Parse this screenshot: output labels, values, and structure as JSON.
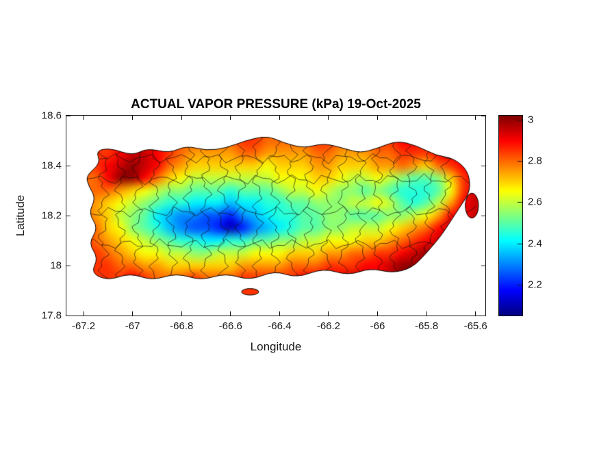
{
  "chart_data": {
    "type": "heatmap",
    "title": "ACTUAL VAPOR PRESSURE (kPa) 19-Oct-2025",
    "xlabel": "Longitude",
    "ylabel": "Latitude",
    "xlim": [
      -67.27,
      -65.56
    ],
    "ylim": [
      17.8,
      18.6
    ],
    "x_ticks": [
      {
        "value": -67.2,
        "label": "-67.2"
      },
      {
        "value": -67.0,
        "label": "-67"
      },
      {
        "value": -66.8,
        "label": "-66.8"
      },
      {
        "value": -66.6,
        "label": "-66.6"
      },
      {
        "value": -66.4,
        "label": "-66.4"
      },
      {
        "value": -66.2,
        "label": "-66.2"
      },
      {
        "value": -66.0,
        "label": "-66"
      },
      {
        "value": -65.8,
        "label": "-65.8"
      },
      {
        "value": -65.6,
        "label": "-65.6"
      }
    ],
    "y_ticks": [
      {
        "value": 17.8,
        "label": "17.8"
      },
      {
        "value": 18.0,
        "label": "18"
      },
      {
        "value": 18.2,
        "label": "18.2"
      },
      {
        "value": 18.4,
        "label": "18.4"
      },
      {
        "value": 18.6,
        "label": "18.6"
      }
    ],
    "colormap": "jet",
    "color_axis": [
      2.05,
      3.02
    ],
    "colorbar_ticks": [
      {
        "value": 2.2,
        "label": "2.2"
      },
      {
        "value": 2.4,
        "label": "2.4"
      },
      {
        "value": 2.6,
        "label": "2.6"
      },
      {
        "value": 2.8,
        "label": "2.8"
      },
      {
        "value": 3.0,
        "label": "3"
      }
    ],
    "units": "kPa",
    "grid": {
      "lon_start": -67.2,
      "lon_step": 0.05,
      "lat_start": 18.5,
      "lat_step": -0.05,
      "ncols": 33,
      "nrows": 12,
      "values": [
        [
          null,
          null,
          null,
          null,
          null,
          2.85,
          2.9,
          2.85,
          2.8,
          2.8,
          2.8,
          2.8,
          2.8,
          2.85,
          2.85,
          2.8,
          2.8,
          2.8,
          2.8,
          2.85,
          2.85,
          2.8,
          2.8,
          2.8,
          2.85,
          2.85,
          2.9,
          2.9,
          2.85,
          2.85,
          null,
          null,
          null
        ],
        [
          null,
          null,
          2.85,
          2.9,
          2.95,
          2.95,
          2.9,
          2.85,
          2.8,
          2.75,
          2.75,
          2.75,
          2.75,
          2.8,
          2.8,
          2.75,
          2.75,
          2.75,
          2.75,
          2.8,
          2.8,
          2.75,
          2.75,
          2.75,
          2.8,
          2.8,
          2.85,
          2.85,
          2.85,
          2.9,
          2.9,
          null,
          null
        ],
        [
          null,
          2.85,
          2.9,
          2.95,
          3.0,
          2.95,
          2.9,
          2.8,
          2.75,
          2.7,
          2.7,
          2.7,
          2.7,
          2.7,
          2.7,
          2.65,
          2.7,
          2.7,
          2.7,
          2.75,
          2.75,
          2.7,
          2.7,
          2.7,
          2.75,
          2.75,
          2.8,
          2.75,
          2.7,
          2.8,
          2.85,
          2.9,
          null
        ],
        [
          null,
          2.8,
          2.9,
          3.0,
          3.0,
          2.9,
          2.8,
          2.7,
          2.65,
          2.6,
          2.6,
          2.6,
          2.6,
          2.6,
          2.6,
          2.6,
          2.65,
          2.65,
          2.65,
          2.7,
          2.7,
          2.65,
          2.6,
          2.6,
          2.65,
          2.6,
          2.55,
          2.5,
          2.5,
          2.55,
          2.7,
          2.85,
          2.9
        ],
        [
          null,
          2.8,
          2.8,
          2.75,
          2.7,
          2.65,
          2.6,
          2.55,
          2.55,
          2.5,
          2.5,
          2.5,
          2.45,
          2.5,
          2.5,
          2.5,
          2.55,
          2.6,
          2.6,
          2.65,
          2.6,
          2.55,
          2.55,
          2.5,
          2.55,
          2.5,
          2.45,
          2.45,
          2.45,
          2.5,
          2.65,
          2.85,
          2.95
        ],
        [
          2.8,
          2.75,
          2.7,
          2.65,
          2.6,
          2.55,
          2.5,
          2.45,
          2.45,
          2.4,
          2.4,
          2.4,
          2.35,
          2.4,
          2.4,
          2.45,
          2.45,
          2.5,
          2.5,
          2.55,
          2.55,
          2.55,
          2.6,
          2.6,
          2.65,
          2.6,
          2.5,
          2.45,
          2.5,
          2.6,
          2.75,
          2.9,
          2.95
        ],
        [
          2.8,
          2.75,
          2.7,
          2.6,
          2.55,
          2.5,
          2.4,
          2.35,
          2.3,
          2.3,
          2.25,
          2.25,
          2.2,
          2.3,
          2.35,
          2.4,
          2.45,
          2.45,
          2.5,
          2.5,
          2.55,
          2.55,
          2.5,
          2.5,
          2.5,
          2.55,
          2.55,
          2.6,
          2.65,
          2.75,
          2.9,
          null,
          null
        ],
        [
          2.85,
          2.8,
          2.7,
          2.65,
          2.55,
          2.5,
          2.45,
          2.35,
          2.3,
          2.25,
          2.25,
          2.2,
          2.1,
          2.2,
          2.3,
          2.35,
          2.4,
          2.45,
          2.5,
          2.5,
          2.55,
          2.55,
          2.6,
          2.6,
          2.6,
          2.65,
          2.7,
          2.75,
          2.8,
          2.9,
          2.95,
          null,
          null
        ],
        [
          2.85,
          2.8,
          2.75,
          2.7,
          2.65,
          2.6,
          2.55,
          2.5,
          2.45,
          2.45,
          2.4,
          2.4,
          2.45,
          2.45,
          2.5,
          2.5,
          2.55,
          2.55,
          2.6,
          2.6,
          2.65,
          2.65,
          2.65,
          2.7,
          2.7,
          2.75,
          2.8,
          2.85,
          2.9,
          2.95,
          null,
          null,
          null
        ],
        [
          null,
          2.85,
          2.8,
          2.75,
          2.7,
          2.65,
          2.65,
          2.6,
          2.6,
          2.55,
          2.55,
          2.6,
          2.6,
          2.6,
          2.65,
          2.65,
          2.65,
          2.7,
          2.7,
          2.7,
          2.75,
          2.75,
          2.8,
          2.8,
          2.85,
          2.85,
          2.9,
          2.95,
          3.0,
          null,
          null,
          null,
          null
        ],
        [
          null,
          2.85,
          2.85,
          2.8,
          2.8,
          2.75,
          2.75,
          2.7,
          2.7,
          2.7,
          2.7,
          2.7,
          2.7,
          2.75,
          2.75,
          2.75,
          2.75,
          2.8,
          2.8,
          2.8,
          2.85,
          2.85,
          2.85,
          2.9,
          2.9,
          2.95,
          3.0,
          3.0,
          null,
          null,
          null,
          null,
          null
        ],
        [
          null,
          null,
          2.85,
          2.85,
          2.9,
          2.85,
          2.8,
          2.8,
          2.8,
          2.85,
          2.8,
          2.8,
          2.8,
          2.85,
          2.85,
          2.85,
          2.85,
          2.85,
          2.9,
          2.9,
          2.9,
          2.9,
          2.95,
          null,
          null,
          null,
          null,
          null,
          null,
          null,
          null,
          null,
          null
        ]
      ]
    },
    "island_outline": [
      [
        -67.19,
        18.36
      ],
      [
        -67.13,
        18.41
      ],
      [
        -67.15,
        18.46
      ],
      [
        -67.09,
        18.47
      ],
      [
        -67.0,
        18.44
      ],
      [
        -66.94,
        18.47
      ],
      [
        -66.85,
        18.45
      ],
      [
        -66.78,
        18.48
      ],
      [
        -66.7,
        18.46
      ],
      [
        -66.62,
        18.47
      ],
      [
        -66.54,
        18.5
      ],
      [
        -66.45,
        18.52
      ],
      [
        -66.38,
        18.49
      ],
      [
        -66.3,
        18.47
      ],
      [
        -66.22,
        18.49
      ],
      [
        -66.14,
        18.47
      ],
      [
        -66.07,
        18.45
      ],
      [
        -66.0,
        18.47
      ],
      [
        -65.92,
        18.5
      ],
      [
        -65.84,
        18.48
      ],
      [
        -65.76,
        18.44
      ],
      [
        -65.69,
        18.43
      ],
      [
        -65.63,
        18.38
      ],
      [
        -65.62,
        18.3
      ],
      [
        -65.66,
        18.24
      ],
      [
        -65.7,
        18.18
      ],
      [
        -65.74,
        18.12
      ],
      [
        -65.8,
        18.05
      ],
      [
        -65.86,
        17.99
      ],
      [
        -65.94,
        17.97
      ],
      [
        -66.03,
        17.99
      ],
      [
        -66.12,
        17.96
      ],
      [
        -66.22,
        17.99
      ],
      [
        -66.33,
        17.95
      ],
      [
        -66.42,
        17.98
      ],
      [
        -66.52,
        17.94
      ],
      [
        -66.62,
        17.97
      ],
      [
        -66.72,
        17.94
      ],
      [
        -66.82,
        17.97
      ],
      [
        -66.92,
        17.94
      ],
      [
        -67.01,
        17.97
      ],
      [
        -67.1,
        17.94
      ],
      [
        -67.17,
        17.97
      ],
      [
        -67.14,
        18.03
      ],
      [
        -67.18,
        18.09
      ],
      [
        -67.14,
        18.15
      ],
      [
        -67.18,
        18.21
      ],
      [
        -67.15,
        18.27
      ],
      [
        -67.18,
        18.32
      ]
    ],
    "islets": [
      {
        "cx": -66.52,
        "cy": 17.895,
        "rx": 0.035,
        "ry": 0.013
      },
      {
        "cx": -65.615,
        "cy": 18.24,
        "rx": 0.027,
        "ry": 0.05
      }
    ]
  }
}
